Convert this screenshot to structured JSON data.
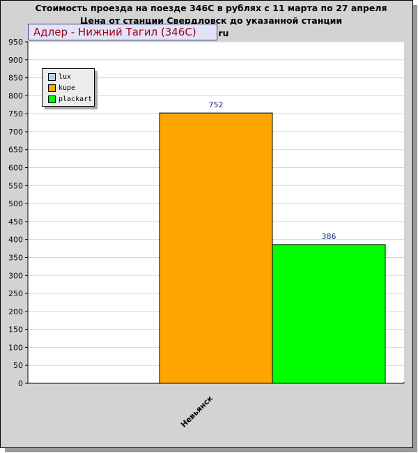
{
  "header": {
    "title_line1": "Стоимость проезда на поезде 346С в рублях с 11 марта по 27 апреля",
    "title_line2": "Цена от станции Свердловск до указанной станции",
    "title_line3": "1rzd.ru",
    "route": "Адлер - Нижний Тагил (346С)"
  },
  "chart_data": {
    "type": "bar",
    "categories": [
      "Невьянск"
    ],
    "series": [
      {
        "name": "lux",
        "values": [
          0
        ],
        "color": "#add8e6"
      },
      {
        "name": "kupe",
        "values": [
          752
        ],
        "color": "#ffa500"
      },
      {
        "name": "plackart",
        "values": [
          386
        ],
        "color": "#00ff00"
      }
    ],
    "ylim": [
      0,
      950
    ],
    "ytick_step": 50,
    "grid": true,
    "legend": "top-left"
  }
}
